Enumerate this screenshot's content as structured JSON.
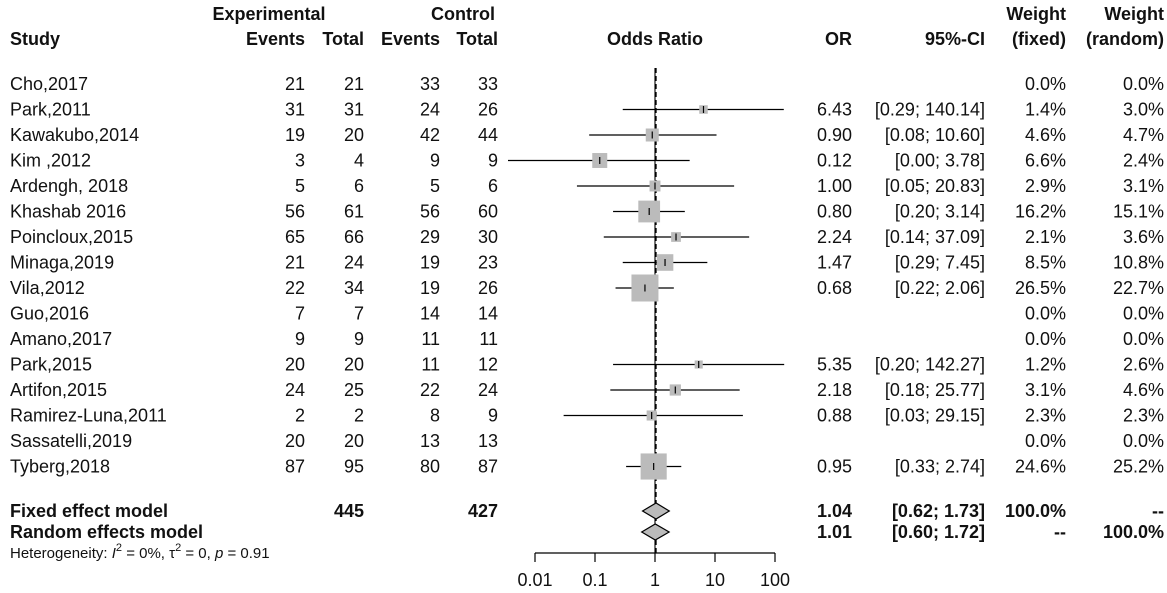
{
  "header": {
    "study": "Study",
    "experimental": "Experimental",
    "control": "Control",
    "events": "Events",
    "total": "Total",
    "odds_ratio": "Odds Ratio",
    "or": "OR",
    "ci": "95%-CI",
    "weight": "Weight",
    "fixed": "(fixed)",
    "random": "(random)"
  },
  "chart_data": {
    "type": "forest",
    "scale": "log",
    "xlim": [
      0.01,
      100
    ],
    "reference_line": 1,
    "ticks": [
      "0.01",
      "0.1",
      "1",
      "10",
      "100"
    ],
    "studies": [
      {
        "name": "Cho,2017",
        "e_events": "21",
        "e_total": "21",
        "c_events": "33",
        "c_total": "33",
        "or": null,
        "lo": null,
        "hi": null,
        "or_text": "",
        "ci_text": "",
        "w_fixed": "0.0%",
        "w_random": "0.0%"
      },
      {
        "name": "Park,2011",
        "e_events": "31",
        "e_total": "31",
        "c_events": "24",
        "c_total": "26",
        "or": 6.43,
        "lo": 0.29,
        "hi": 140.14,
        "or_text": "6.43",
        "ci_text": "[0.29; 140.14]",
        "w_fixed": "1.4%",
        "w_random": "3.0%"
      },
      {
        "name": "Kawakubo,2014",
        "e_events": "19",
        "e_total": "20",
        "c_events": "42",
        "c_total": "44",
        "or": 0.9,
        "lo": 0.08,
        "hi": 10.6,
        "or_text": "0.90",
        "ci_text": "[0.08; 10.60]",
        "w_fixed": "4.6%",
        "w_random": "4.7%"
      },
      {
        "name": "Kim ,2012",
        "e_events": "3",
        "e_total": "4",
        "c_events": "9",
        "c_total": "9",
        "or": 0.12,
        "lo": 0.003,
        "hi": 3.78,
        "or_text": "0.12",
        "ci_text": "[0.00; 3.78]",
        "w_fixed": "6.6%",
        "w_random": "2.4%"
      },
      {
        "name": "Ardengh, 2018",
        "e_events": "5",
        "e_total": "6",
        "c_events": "5",
        "c_total": "6",
        "or": 1.0,
        "lo": 0.05,
        "hi": 20.83,
        "or_text": "1.00",
        "ci_text": "[0.05; 20.83]",
        "w_fixed": "2.9%",
        "w_random": "3.1%"
      },
      {
        "name": "Khashab 2016",
        "e_events": "56",
        "e_total": "61",
        "c_events": "56",
        "c_total": "60",
        "or": 0.8,
        "lo": 0.2,
        "hi": 3.14,
        "or_text": "0.80",
        "ci_text": "[0.20; 3.14]",
        "w_fixed": "16.2%",
        "w_random": "15.1%"
      },
      {
        "name": "Poincloux,2015",
        "e_events": "65",
        "e_total": "66",
        "c_events": "29",
        "c_total": "30",
        "or": 2.24,
        "lo": 0.14,
        "hi": 37.09,
        "or_text": "2.24",
        "ci_text": "[0.14; 37.09]",
        "w_fixed": "2.1%",
        "w_random": "3.6%"
      },
      {
        "name": "Minaga,2019",
        "e_events": "21",
        "e_total": "24",
        "c_events": "19",
        "c_total": "23",
        "or": 1.47,
        "lo": 0.29,
        "hi": 7.45,
        "or_text": "1.47",
        "ci_text": "[0.29; 7.45]",
        "w_fixed": "8.5%",
        "w_random": "10.8%"
      },
      {
        "name": "Vila,2012",
        "e_events": "22",
        "e_total": "34",
        "c_events": "19",
        "c_total": "26",
        "or": 0.68,
        "lo": 0.22,
        "hi": 2.06,
        "or_text": "0.68",
        "ci_text": "[0.22; 2.06]",
        "w_fixed": "26.5%",
        "w_random": "22.7%"
      },
      {
        "name": "Guo,2016",
        "e_events": "7",
        "e_total": "7",
        "c_events": "14",
        "c_total": "14",
        "or": null,
        "lo": null,
        "hi": null,
        "or_text": "",
        "ci_text": "",
        "w_fixed": "0.0%",
        "w_random": "0.0%"
      },
      {
        "name": "Amano,2017",
        "e_events": "9",
        "e_total": "9",
        "c_events": "11",
        "c_total": "11",
        "or": null,
        "lo": null,
        "hi": null,
        "or_text": "",
        "ci_text": "",
        "w_fixed": "0.0%",
        "w_random": "0.0%"
      },
      {
        "name": "Park,2015",
        "e_events": "20",
        "e_total": "20",
        "c_events": "11",
        "c_total": "12",
        "or": 5.35,
        "lo": 0.2,
        "hi": 142.27,
        "or_text": "5.35",
        "ci_text": "[0.20; 142.27]",
        "w_fixed": "1.2%",
        "w_random": "2.6%"
      },
      {
        "name": "Artifon,2015",
        "e_events": "24",
        "e_total": "25",
        "c_events": "22",
        "c_total": "24",
        "or": 2.18,
        "lo": 0.18,
        "hi": 25.77,
        "or_text": "2.18",
        "ci_text": "[0.18; 25.77]",
        "w_fixed": "3.1%",
        "w_random": "4.6%"
      },
      {
        "name": "Ramirez-Luna,2011",
        "e_events": "2",
        "e_total": "2",
        "c_events": "8",
        "c_total": "9",
        "or": 0.88,
        "lo": 0.03,
        "hi": 29.15,
        "or_text": "0.88",
        "ci_text": "[0.03; 29.15]",
        "w_fixed": "2.3%",
        "w_random": "2.3%"
      },
      {
        "name": "Sassatelli,2019",
        "e_events": "20",
        "e_total": "20",
        "c_events": "13",
        "c_total": "13",
        "or": null,
        "lo": null,
        "hi": null,
        "or_text": "",
        "ci_text": "",
        "w_fixed": "0.0%",
        "w_random": "0.0%"
      },
      {
        "name": "Tyberg,2018",
        "e_events": "87",
        "e_total": "95",
        "c_events": "80",
        "c_total": "87",
        "or": 0.95,
        "lo": 0.33,
        "hi": 2.74,
        "or_text": "0.95",
        "ci_text": "[0.33; 2.74]",
        "w_fixed": "24.6%",
        "w_random": "25.2%"
      }
    ],
    "summary": [
      {
        "name": "Fixed effect model",
        "e_total": "445",
        "c_total": "427",
        "or": 1.04,
        "lo": 0.62,
        "hi": 1.73,
        "or_text": "1.04",
        "ci_text": "[0.62; 1.73]",
        "w_fixed": "100.0%",
        "w_random": "--"
      },
      {
        "name": "Random effects model",
        "e_total": "",
        "c_total": "",
        "or": 1.01,
        "lo": 0.6,
        "hi": 1.72,
        "or_text": "1.01",
        "ci_text": "[0.60; 1.72]",
        "w_fixed": "--",
        "w_random": "100.0%"
      }
    ],
    "heterogeneity": {
      "prefix": "Heterogeneity: ",
      "i_symbol": "I",
      "i_sup": "2",
      "i_value": " = 0%, ",
      "tau_symbol": "τ",
      "tau_sup": "2",
      "tau_value": " = 0, ",
      "p_symbol": "p",
      "p_value": " = 0.91"
    },
    "colors": {
      "square": "#bbbbbb",
      "line": "#000000",
      "text": "#111111"
    }
  }
}
